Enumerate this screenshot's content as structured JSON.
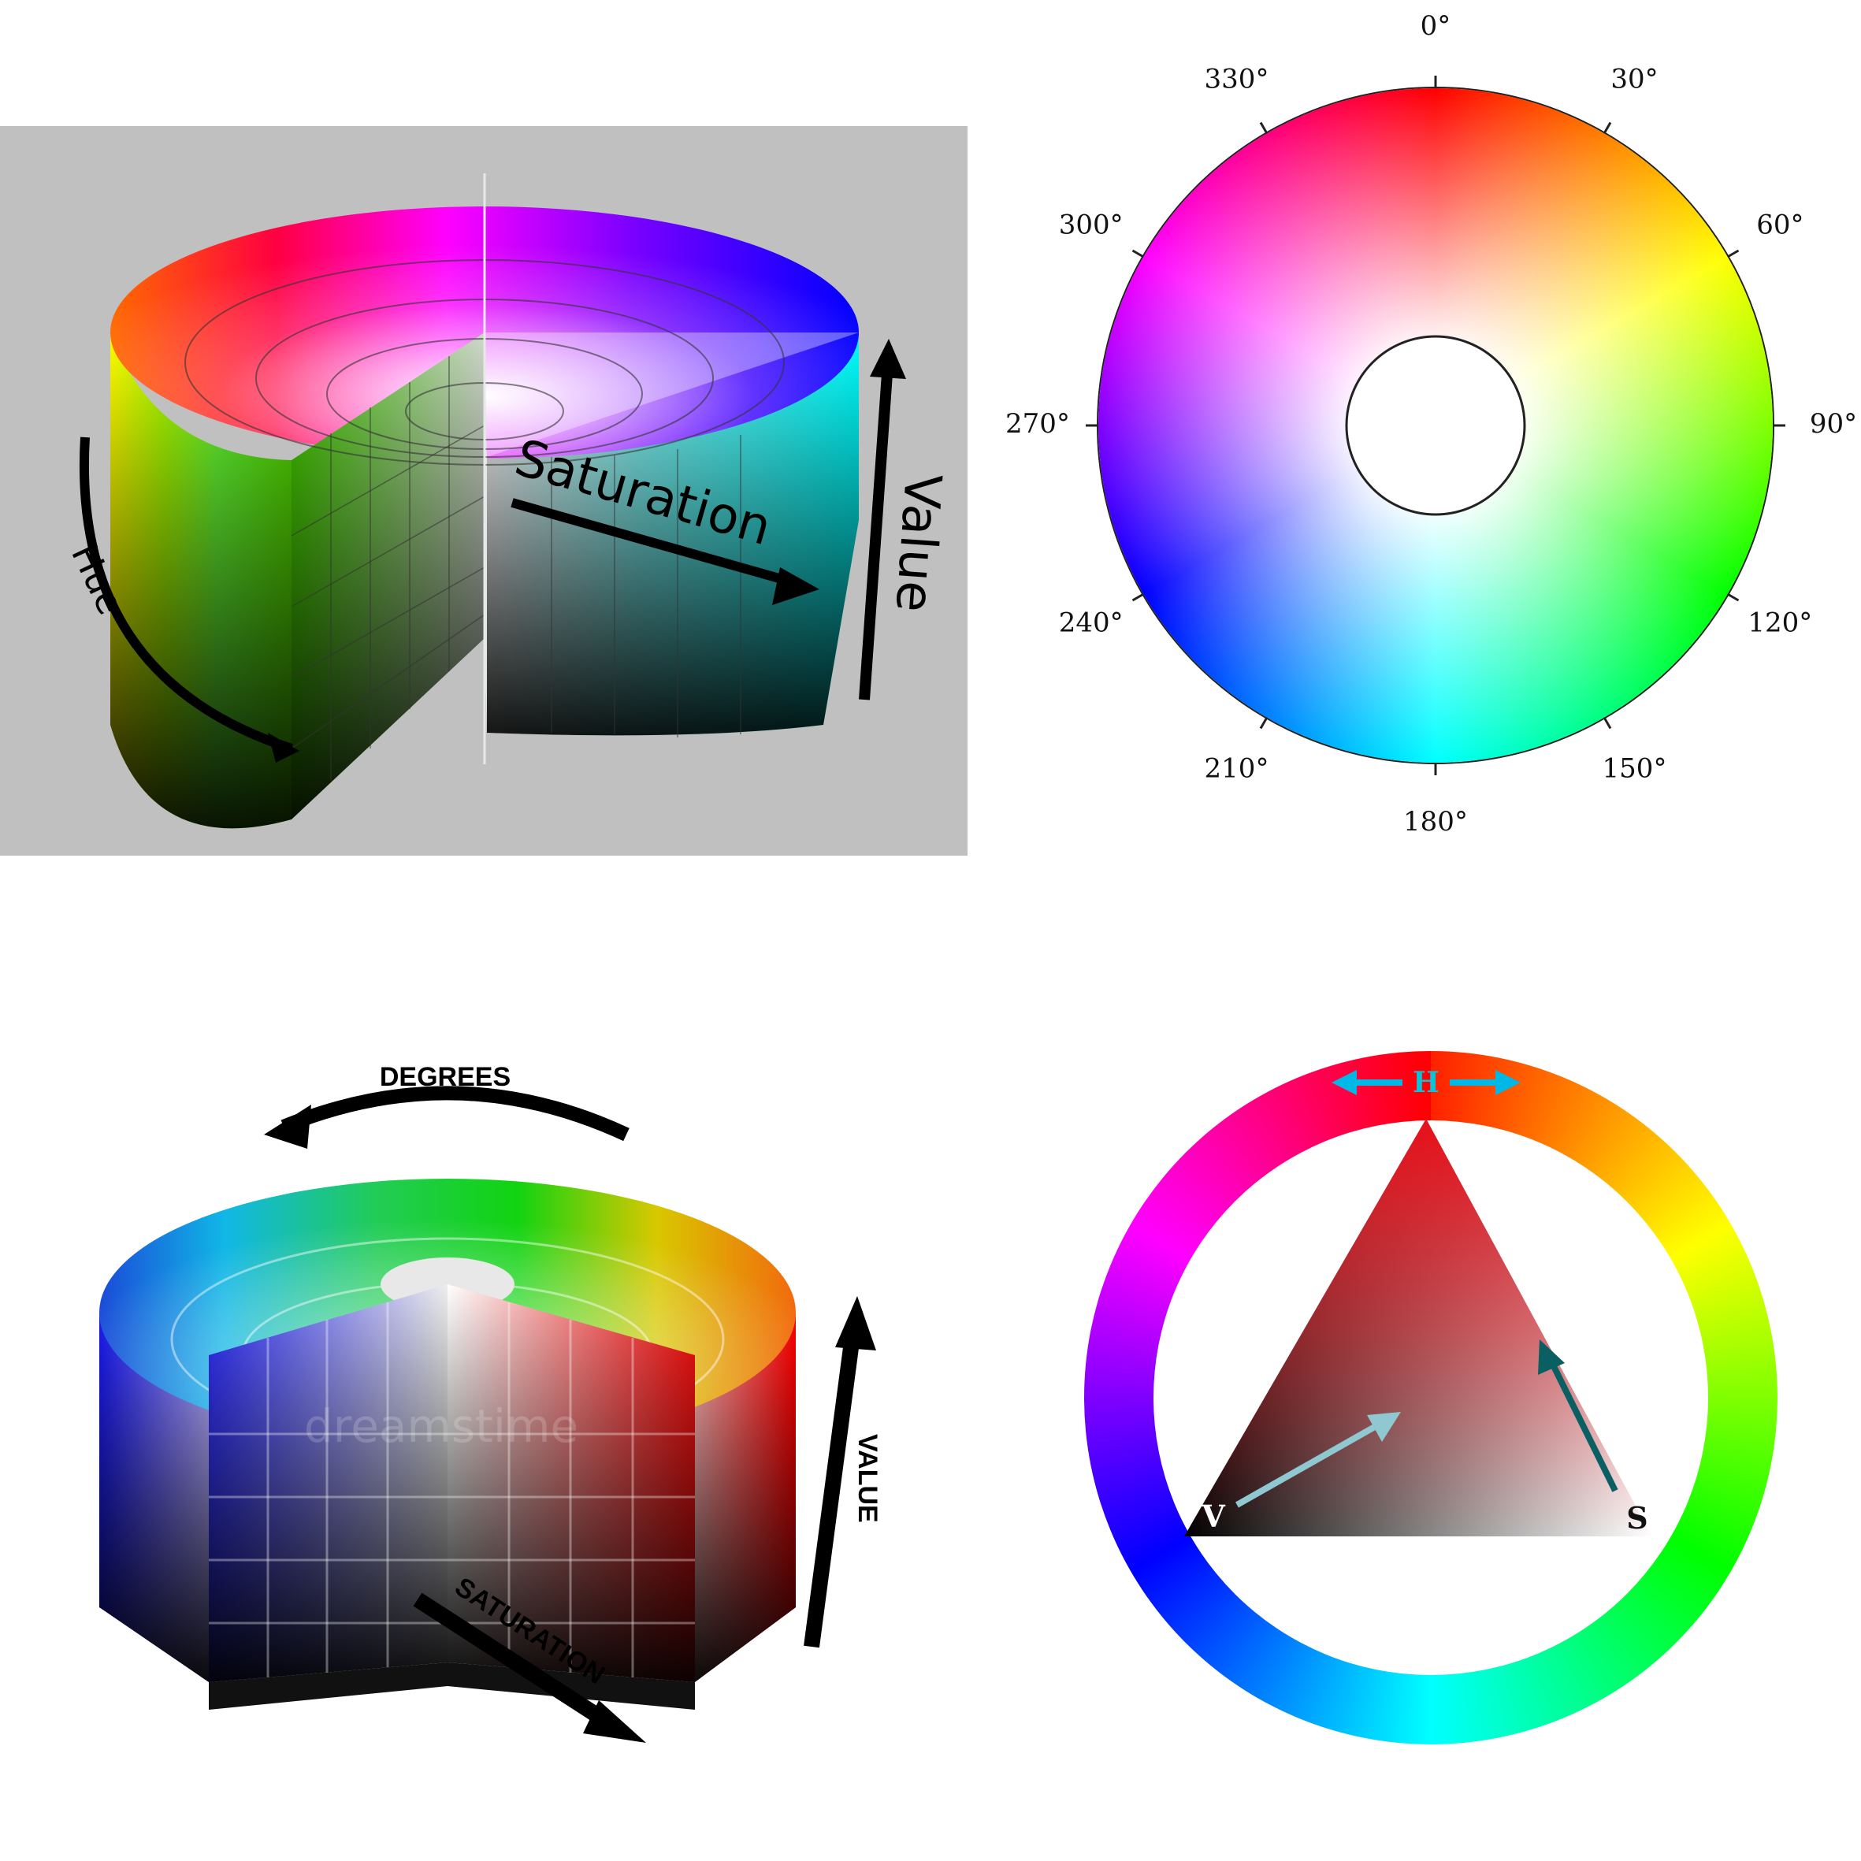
{
  "panel_cylinder_hsv": {
    "labels": {
      "hue": "Hue",
      "saturation": "Saturation",
      "value": "Value"
    }
  },
  "panel_hue_wheel": {
    "angle_labels": [
      "0°",
      "30°",
      "60°",
      "90°",
      "120°",
      "150°",
      "180°",
      "210°",
      "240°",
      "270°",
      "300°",
      "330°"
    ]
  },
  "panel_cylinder_blocks": {
    "labels": {
      "degrees": "DEGREES",
      "value": "VALUE",
      "saturation": "SATURATION"
    },
    "watermark": "dreamstime"
  },
  "panel_triangle": {
    "labels": {
      "h": "H",
      "v": "V",
      "s": "S"
    },
    "colors": {
      "h_arrow": "#00b8e6",
      "v_arrow": "#8fc8d0",
      "s_arrow": "#0a5f63",
      "apex": "#e8101a"
    }
  }
}
